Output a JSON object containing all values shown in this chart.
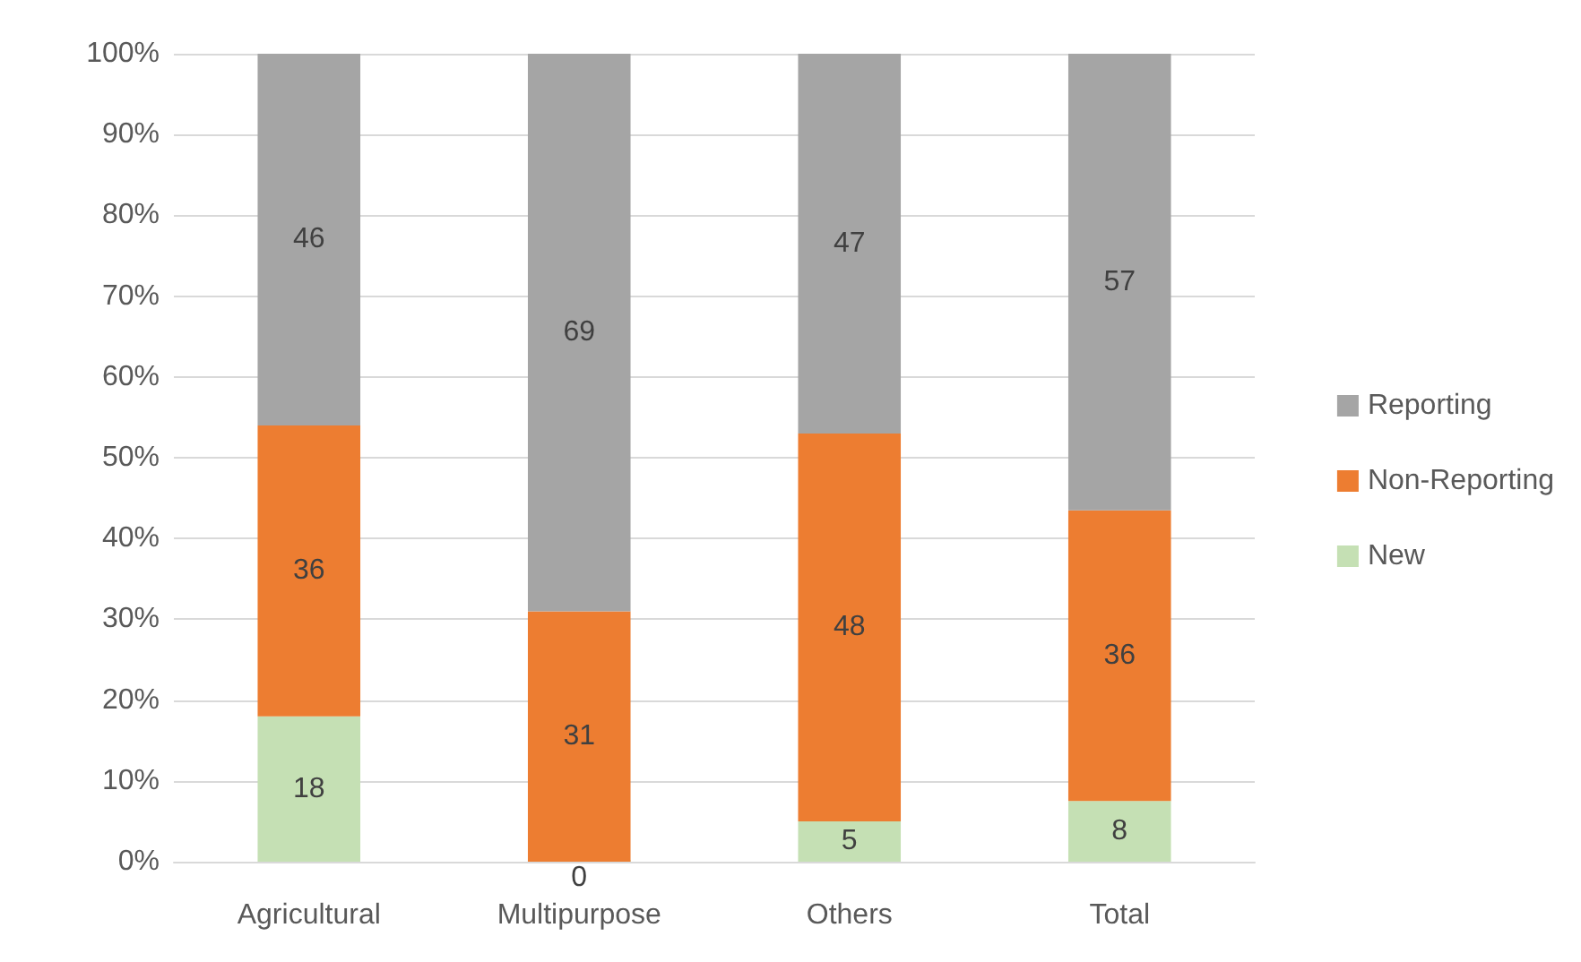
{
  "chart_data": {
    "type": "bar",
    "stacked": true,
    "categories": [
      "Agricultural",
      "Multipurpose",
      "Others",
      "Total"
    ],
    "series": [
      {
        "name": "New",
        "color": "#c5e0b4",
        "values": [
          18,
          0,
          5,
          7.5
        ],
        "value_labels": [
          "18",
          "0",
          "5",
          "8"
        ]
      },
      {
        "name": "Non-Reporting",
        "color": "#ed7d31",
        "values": [
          36,
          31,
          48,
          36
        ],
        "value_labels": [
          "36",
          "31",
          "48",
          "36"
        ]
      },
      {
        "name": "Reporting",
        "color": "#a5a5a5",
        "values": [
          46,
          69,
          47,
          56.5
        ],
        "value_labels": [
          "46",
          "69",
          "47",
          "57"
        ]
      }
    ],
    "ylim": [
      0,
      100
    ],
    "yticks": [
      {
        "value": 0,
        "label": "0%"
      },
      {
        "value": 10,
        "label": "10%"
      },
      {
        "value": 20,
        "label": "20%"
      },
      {
        "value": 30,
        "label": "30%"
      },
      {
        "value": 40,
        "label": "40%"
      },
      {
        "value": 50,
        "label": "50%"
      },
      {
        "value": 60,
        "label": "60%"
      },
      {
        "value": 70,
        "label": "70%"
      },
      {
        "value": 80,
        "label": "80%"
      },
      {
        "value": 90,
        "label": "90%"
      },
      {
        "value": 100,
        "label": "100%"
      }
    ],
    "grid": "y",
    "legend": "right"
  }
}
